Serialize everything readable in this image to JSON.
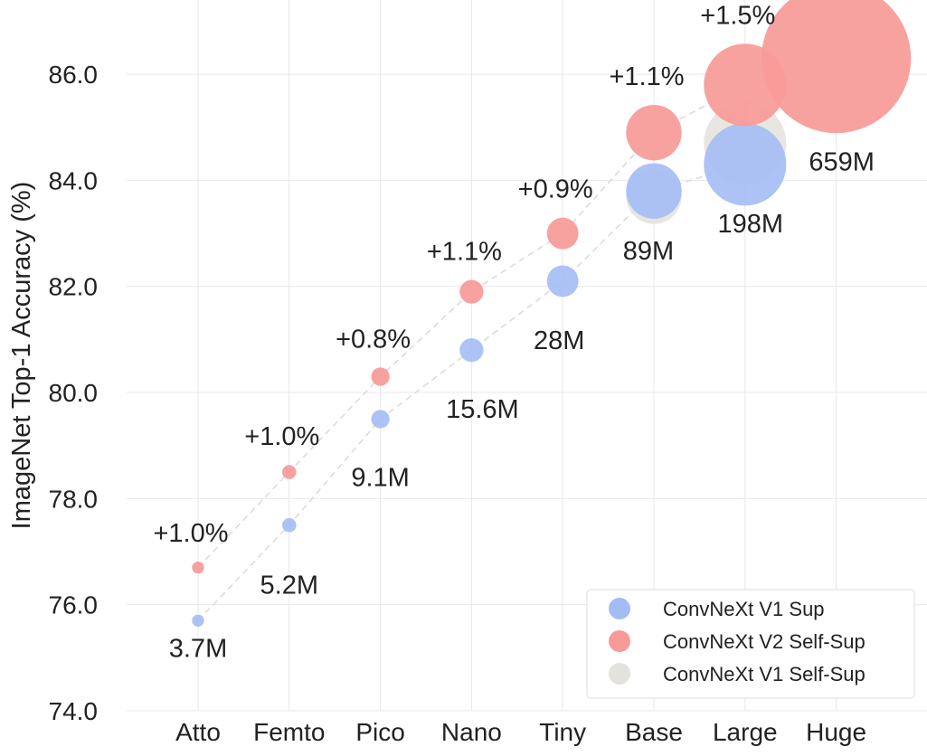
{
  "chart_data": {
    "type": "scatter",
    "title": "",
    "xlabel": "",
    "ylabel": "ImageNet Top-1 Accuracy (%)",
    "categories": [
      "Atto",
      "Femto",
      "Pico",
      "Nano",
      "Tiny",
      "Base",
      "Large",
      "Huge"
    ],
    "ylim": [
      74.0,
      87.4
    ],
    "yticks": [
      "74.0",
      "76.0",
      "78.0",
      "80.0",
      "82.0",
      "84.0",
      "86.0"
    ],
    "grid": true,
    "legend_position": "bottom-right",
    "series": [
      {
        "name": "ConvNeXt V1 Sup",
        "color": "#a4bcf5",
        "points": [
          {
            "x": "Atto",
            "y": 75.7,
            "params_m": 3.7
          },
          {
            "x": "Femto",
            "y": 77.5,
            "params_m": 5.2
          },
          {
            "x": "Pico",
            "y": 79.5,
            "params_m": 9.1
          },
          {
            "x": "Nano",
            "y": 80.8,
            "params_m": 15.6
          },
          {
            "x": "Tiny",
            "y": 82.1,
            "params_m": 28
          },
          {
            "x": "Base",
            "y": 83.8,
            "params_m": 89
          },
          {
            "x": "Large",
            "y": 84.3,
            "params_m": 198
          }
        ]
      },
      {
        "name": "ConvNeXt V2 Self-Sup",
        "color": "#f79a98",
        "points": [
          {
            "x": "Atto",
            "y": 76.7,
            "params_m": 3.7
          },
          {
            "x": "Femto",
            "y": 78.5,
            "params_m": 5.2
          },
          {
            "x": "Pico",
            "y": 80.3,
            "params_m": 9.1
          },
          {
            "x": "Nano",
            "y": 81.9,
            "params_m": 15.6
          },
          {
            "x": "Tiny",
            "y": 83.0,
            "params_m": 28
          },
          {
            "x": "Base",
            "y": 84.9,
            "params_m": 89
          },
          {
            "x": "Large",
            "y": 85.8,
            "params_m": 198
          },
          {
            "x": "Huge",
            "y": 86.3,
            "params_m": 659
          }
        ]
      },
      {
        "name": "ConvNeXt V1 Self-Sup",
        "color": "#e4e2dc",
        "points": [
          {
            "x": "Base",
            "y": 83.7,
            "params_m": 89
          },
          {
            "x": "Large",
            "y": 84.7,
            "params_m": 198
          }
        ]
      }
    ],
    "annotations": {
      "improvements": [
        {
          "x": "Atto",
          "text": "+1.0%"
        },
        {
          "x": "Femto",
          "text": "+1.0%"
        },
        {
          "x": "Pico",
          "text": "+0.8%"
        },
        {
          "x": "Nano",
          "text": "+1.1%"
        },
        {
          "x": "Tiny",
          "text": "+0.9%"
        },
        {
          "x": "Base",
          "text": "+1.1%"
        },
        {
          "x": "Large",
          "text": "+1.5%"
        }
      ],
      "params": [
        {
          "x": "Atto",
          "text": "3.7M"
        },
        {
          "x": "Femto",
          "text": "5.2M"
        },
        {
          "x": "Pico",
          "text": "9.1M"
        },
        {
          "x": "Nano",
          "text": "15.6M"
        },
        {
          "x": "Tiny",
          "text": "28M"
        },
        {
          "x": "Base",
          "text": "89M"
        },
        {
          "x": "Large",
          "text": "198M"
        },
        {
          "x": "Huge",
          "text": "659M"
        }
      ]
    }
  }
}
